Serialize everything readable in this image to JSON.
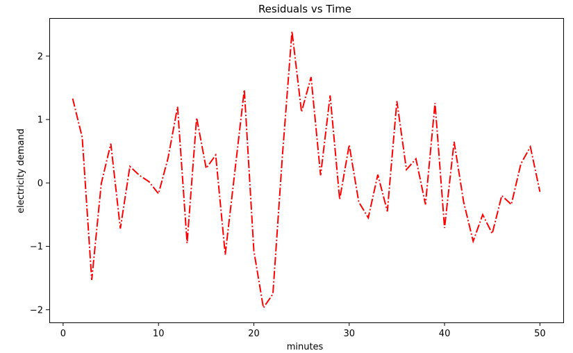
{
  "chart_data": {
    "type": "line",
    "title": "Residuals vs Time",
    "xlabel": "minutes",
    "ylabel": "electricity demand",
    "xlim": [
      -1.45,
      52.45
    ],
    "ylim": [
      -2.2,
      2.6
    ],
    "xticks": [
      0,
      10,
      20,
      30,
      40,
      50
    ],
    "yticks": [
      -2,
      -1,
      0,
      1,
      2
    ],
    "ytick_labels": [
      "−2",
      "−1",
      "0",
      "1",
      "2"
    ],
    "grid": false,
    "line_style": "dashdot",
    "line_color": "#ff0000",
    "series": [
      {
        "x": [
          1,
          2,
          3,
          4,
          5,
          6,
          7,
          8,
          9,
          10,
          11,
          12,
          13,
          14,
          15,
          16,
          17,
          18,
          19,
          20,
          21,
          22,
          23,
          24,
          25,
          26,
          27,
          28,
          29,
          30,
          31,
          32,
          33,
          34,
          35,
          36,
          37,
          38,
          39,
          40,
          41,
          42,
          43,
          44,
          45,
          46,
          47,
          48,
          49,
          50
        ],
        "values": [
          1.33,
          0.72,
          -1.53,
          -0.01,
          0.62,
          -0.72,
          0.26,
          0.12,
          0.02,
          -0.17,
          0.39,
          1.2,
          -0.95,
          1.03,
          0.23,
          0.44,
          -1.13,
          0.17,
          1.47,
          -1.07,
          -1.97,
          -1.75,
          0.44,
          2.39,
          1.12,
          1.67,
          0.12,
          1.38,
          -0.26,
          0.6,
          -0.3,
          -0.55,
          0.13,
          -0.45,
          1.29,
          0.21,
          0.38,
          -0.34,
          1.26,
          -0.71,
          0.65,
          -0.3,
          -0.92,
          -0.5,
          -0.8,
          -0.2,
          -0.34,
          0.3,
          0.57,
          -0.14
        ]
      }
    ]
  }
}
